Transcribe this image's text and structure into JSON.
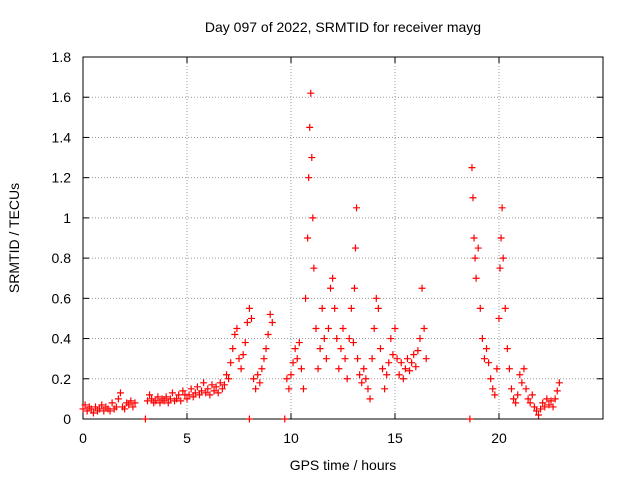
{
  "chart_data": {
    "type": "scatter",
    "title": "Day 097 of 2022, SRMTID for receiver mayg",
    "xlabel": "GPS time / hours",
    "ylabel": "SRMTID / TECUs",
    "xlim": [
      0,
      25
    ],
    "ylim": [
      0,
      1.8
    ],
    "x_ticks": [
      0,
      5,
      10,
      15,
      20
    ],
    "x_tick_labels": [
      "0",
      "5",
      "10",
      "15",
      "20"
    ],
    "y_ticks": [
      0,
      0.2,
      0.4,
      0.6,
      0.8,
      1.0,
      1.2,
      1.4,
      1.6,
      1.8
    ],
    "y_tick_labels": [
      "0",
      "0.2",
      "0.4",
      "0.6",
      "0.8",
      "1",
      "1.2",
      "1.4",
      "1.6",
      "1.8"
    ],
    "grid": true,
    "marker": "+",
    "color": "#ff0000",
    "series": [
      {
        "name": "SRMTID",
        "points": [
          [
            0.0,
            0.05
          ],
          [
            0.1,
            0.07
          ],
          [
            0.2,
            0.04
          ],
          [
            0.3,
            0.06
          ],
          [
            0.4,
            0.05
          ],
          [
            0.5,
            0.03
          ],
          [
            0.6,
            0.06
          ],
          [
            0.7,
            0.04
          ],
          [
            0.8,
            0.05
          ],
          [
            0.9,
            0.07
          ],
          [
            1.0,
            0.04
          ],
          [
            1.1,
            0.06
          ],
          [
            1.2,
            0.05
          ],
          [
            1.3,
            0.04
          ],
          [
            1.4,
            0.08
          ],
          [
            1.5,
            0.05
          ],
          [
            1.6,
            0.06
          ],
          [
            1.7,
            0.1
          ],
          [
            1.8,
            0.13
          ],
          [
            1.9,
            0.06
          ],
          [
            2.0,
            0.05
          ],
          [
            2.1,
            0.08
          ],
          [
            2.2,
            0.07
          ],
          [
            2.3,
            0.09
          ],
          [
            2.4,
            0.06
          ],
          [
            2.5,
            0.08
          ],
          [
            3.0,
            0.0
          ],
          [
            3.1,
            0.09
          ],
          [
            3.2,
            0.12
          ],
          [
            3.3,
            0.1
          ],
          [
            3.4,
            0.08
          ],
          [
            3.5,
            0.09
          ],
          [
            3.6,
            0.11
          ],
          [
            3.7,
            0.08
          ],
          [
            3.8,
            0.1
          ],
          [
            3.9,
            0.09
          ],
          [
            4.0,
            0.11
          ],
          [
            4.1,
            0.08
          ],
          [
            4.2,
            0.1
          ],
          [
            4.3,
            0.13
          ],
          [
            4.4,
            0.09
          ],
          [
            4.5,
            0.1
          ],
          [
            4.6,
            0.12
          ],
          [
            4.7,
            0.09
          ],
          [
            4.8,
            0.14
          ],
          [
            4.9,
            0.12
          ],
          [
            5.0,
            0.1
          ],
          [
            5.1,
            0.12
          ],
          [
            5.2,
            0.15
          ],
          [
            5.3,
            0.11
          ],
          [
            5.4,
            0.13
          ],
          [
            5.5,
            0.16
          ],
          [
            5.6,
            0.12
          ],
          [
            5.7,
            0.14
          ],
          [
            5.8,
            0.18
          ],
          [
            5.9,
            0.13
          ],
          [
            6.0,
            0.15
          ],
          [
            6.1,
            0.12
          ],
          [
            6.2,
            0.17
          ],
          [
            6.3,
            0.14
          ],
          [
            6.4,
            0.16
          ],
          [
            6.5,
            0.13
          ],
          [
            6.6,
            0.18
          ],
          [
            6.7,
            0.15
          ],
          [
            6.8,
            0.17
          ],
          [
            6.9,
            0.22
          ],
          [
            7.0,
            0.2
          ],
          [
            7.1,
            0.28
          ],
          [
            7.2,
            0.35
          ],
          [
            7.3,
            0.42
          ],
          [
            7.4,
            0.45
          ],
          [
            7.5,
            0.3
          ],
          [
            7.6,
            0.25
          ],
          [
            7.7,
            0.32
          ],
          [
            7.8,
            0.38
          ],
          [
            7.9,
            0.48
          ],
          [
            8.0,
            0.55
          ],
          [
            8.1,
            0.5
          ],
          [
            8.2,
            0.2
          ],
          [
            8.3,
            0.15
          ],
          [
            8.4,
            0.22
          ],
          [
            8.5,
            0.18
          ],
          [
            8.6,
            0.25
          ],
          [
            8.7,
            0.3
          ],
          [
            8.8,
            0.35
          ],
          [
            8.9,
            0.42
          ],
          [
            9.0,
            0.52
          ],
          [
            9.1,
            0.48
          ],
          [
            8.0,
            0.0
          ],
          [
            9.7,
            0.0
          ],
          [
            9.8,
            0.2
          ],
          [
            9.9,
            0.15
          ],
          [
            10.0,
            0.22
          ],
          [
            10.1,
            0.28
          ],
          [
            10.2,
            0.35
          ],
          [
            10.3,
            0.3
          ],
          [
            10.4,
            0.38
          ],
          [
            10.5,
            0.25
          ],
          [
            10.6,
            0.15
          ],
          [
            10.7,
            0.6
          ],
          [
            10.8,
            0.9
          ],
          [
            10.85,
            1.2
          ],
          [
            10.9,
            1.45
          ],
          [
            10.95,
            1.62
          ],
          [
            11.0,
            1.3
          ],
          [
            11.05,
            1.0
          ],
          [
            11.1,
            0.75
          ],
          [
            11.2,
            0.45
          ],
          [
            11.3,
            0.25
          ],
          [
            11.4,
            0.35
          ],
          [
            11.5,
            0.55
          ],
          [
            11.6,
            0.4
          ],
          [
            11.7,
            0.3
          ],
          [
            11.8,
            0.45
          ],
          [
            11.9,
            0.65
          ],
          [
            12.0,
            0.7
          ],
          [
            12.1,
            0.55
          ],
          [
            12.2,
            0.4
          ],
          [
            12.3,
            0.25
          ],
          [
            12.4,
            0.35
          ],
          [
            12.5,
            0.45
          ],
          [
            12.6,
            0.3
          ],
          [
            12.7,
            0.2
          ],
          [
            12.8,
            0.4
          ],
          [
            12.9,
            0.55
          ],
          [
            13.0,
            0.38
          ],
          [
            13.05,
            0.65
          ],
          [
            13.1,
            0.85
          ],
          [
            13.15,
            1.05
          ],
          [
            13.2,
            0.3
          ],
          [
            13.3,
            0.22
          ],
          [
            13.4,
            0.18
          ],
          [
            13.5,
            0.25
          ],
          [
            13.6,
            0.2
          ],
          [
            13.7,
            0.15
          ],
          [
            13.8,
            0.1
          ],
          [
            13.9,
            0.3
          ],
          [
            14.0,
            0.45
          ],
          [
            14.1,
            0.6
          ],
          [
            14.2,
            0.55
          ],
          [
            14.3,
            0.35
          ],
          [
            14.4,
            0.25
          ],
          [
            14.5,
            0.15
          ],
          [
            14.6,
            0.22
          ],
          [
            14.7,
            0.28
          ],
          [
            14.8,
            0.4
          ],
          [
            14.9,
            0.32
          ],
          [
            15.0,
            0.45
          ],
          [
            15.1,
            0.3
          ],
          [
            15.2,
            0.22
          ],
          [
            15.3,
            0.28
          ],
          [
            15.4,
            0.2
          ],
          [
            15.5,
            0.25
          ],
          [
            15.6,
            0.3
          ],
          [
            15.7,
            0.24
          ],
          [
            15.8,
            0.28
          ],
          [
            15.9,
            0.32
          ],
          [
            16.0,
            0.26
          ],
          [
            16.1,
            0.34
          ],
          [
            16.2,
            0.4
          ],
          [
            16.3,
            0.65
          ],
          [
            16.4,
            0.45
          ],
          [
            16.5,
            0.3
          ],
          [
            18.6,
            0.0
          ],
          [
            18.7,
            1.25
          ],
          [
            18.75,
            1.1
          ],
          [
            18.8,
            0.9
          ],
          [
            18.85,
            0.8
          ],
          [
            18.9,
            0.7
          ],
          [
            19.0,
            0.85
          ],
          [
            19.1,
            0.55
          ],
          [
            19.2,
            0.4
          ],
          [
            19.3,
            0.3
          ],
          [
            19.4,
            0.35
          ],
          [
            19.5,
            0.28
          ],
          [
            19.6,
            0.2
          ],
          [
            19.7,
            0.15
          ],
          [
            19.8,
            0.12
          ],
          [
            19.9,
            0.25
          ],
          [
            20.0,
            0.5
          ],
          [
            20.05,
            0.75
          ],
          [
            20.1,
            0.9
          ],
          [
            20.15,
            1.05
          ],
          [
            20.2,
            0.8
          ],
          [
            20.3,
            0.55
          ],
          [
            20.4,
            0.35
          ],
          [
            20.5,
            0.25
          ],
          [
            20.6,
            0.15
          ],
          [
            20.7,
            0.1
          ],
          [
            20.8,
            0.08
          ],
          [
            20.9,
            0.12
          ],
          [
            21.0,
            0.22
          ],
          [
            21.1,
            0.18
          ],
          [
            21.2,
            0.25
          ],
          [
            21.3,
            0.15
          ],
          [
            21.4,
            0.1
          ],
          [
            21.5,
            0.08
          ],
          [
            21.6,
            0.12
          ],
          [
            21.7,
            0.06
          ],
          [
            21.8,
            0.04
          ],
          [
            21.9,
            0.02
          ],
          [
            22.0,
            0.05
          ],
          [
            22.1,
            0.08
          ],
          [
            22.2,
            0.06
          ],
          [
            22.3,
            0.1
          ],
          [
            22.4,
            0.07
          ],
          [
            22.5,
            0.09
          ],
          [
            22.6,
            0.06
          ],
          [
            22.7,
            0.1
          ],
          [
            22.8,
            0.14
          ],
          [
            22.9,
            0.18
          ]
        ]
      }
    ]
  }
}
